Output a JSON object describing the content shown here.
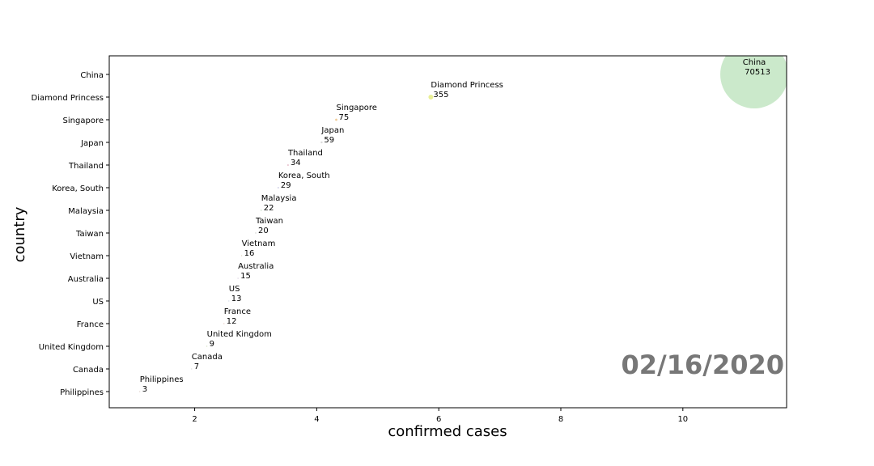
{
  "chart_data": {
    "type": "scatter",
    "title": "",
    "xlabel": "confirmed cases",
    "ylabel": "country",
    "xlim": [
      0.6,
      11.7
    ],
    "xticks": [
      2,
      4,
      6,
      8,
      10
    ],
    "categories": [
      "China",
      "Diamond Princess",
      "Singapore",
      "Japan",
      "Thailand",
      "Korea, South",
      "Malaysia",
      "Taiwan",
      "Vietnam",
      "Australia",
      "US",
      "France",
      "United Kingdom",
      "Canada",
      "Philippines"
    ],
    "points": [
      {
        "country": "China",
        "x": 11.17,
        "value": "70513",
        "color": "#c8e8c8"
      },
      {
        "country": "Diamond Princess",
        "x": 5.87,
        "value": "355",
        "color": "#e8ee90"
      },
      {
        "country": "Singapore",
        "x": 4.32,
        "value": "75",
        "color": "#f0c890"
      },
      {
        "country": "Japan",
        "x": 4.08,
        "value": "59",
        "color": "#d8d8d8"
      },
      {
        "country": "Thailand",
        "x": 3.53,
        "value": "34",
        "color": "#e0b0c0"
      },
      {
        "country": "Korea, South",
        "x": 3.37,
        "value": "29",
        "color": "#c0c0e0"
      },
      {
        "country": "Malaysia",
        "x": 3.09,
        "value": "22",
        "color": "#c0d8c0"
      },
      {
        "country": "Taiwan",
        "x": 3.0,
        "value": "20",
        "color": "#c8c8c8"
      },
      {
        "country": "Vietnam",
        "x": 2.77,
        "value": "16",
        "color": "#d8d0b0"
      },
      {
        "country": "Australia",
        "x": 2.71,
        "value": "15",
        "color": "#d0c0d8"
      },
      {
        "country": "US",
        "x": 2.56,
        "value": "13",
        "color": "#c0d0e0"
      },
      {
        "country": "France",
        "x": 2.48,
        "value": "12",
        "color": "#e0b8b0"
      },
      {
        "country": "United Kingdom",
        "x": 2.2,
        "value": "9",
        "color": "#c8d8b0"
      },
      {
        "country": "Canada",
        "x": 1.95,
        "value": "7",
        "color": "#d0d0d0"
      },
      {
        "country": "Philippines",
        "x": 1.1,
        "value": "3",
        "color": "#d8c8c0"
      }
    ],
    "annotation": "02/16/2020",
    "grid": false,
    "legend": "none"
  }
}
